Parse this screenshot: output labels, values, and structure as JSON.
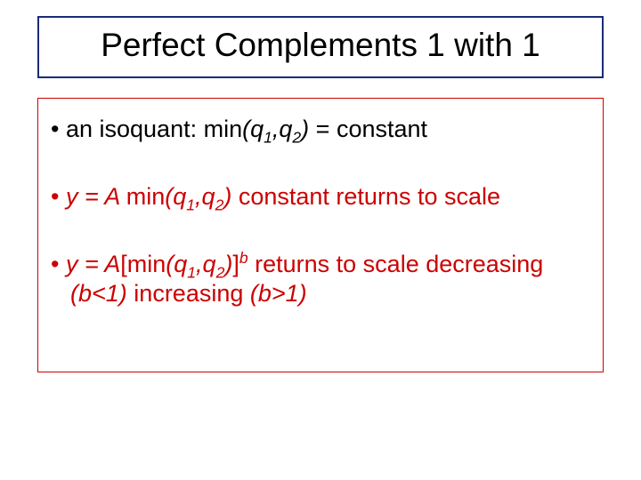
{
  "colors": {
    "title_border": "#1a2a7a",
    "title_text": "#000000",
    "body_border": "#cc0000",
    "bullet1_color": "#000000",
    "bullet2_color": "#cc0000",
    "bullet3_color": "#cc0000",
    "background": "#ffffff"
  },
  "typography": {
    "title_fontsize": 37,
    "body_fontsize": 27,
    "font_family": "Arial"
  },
  "title": "Perfect Complements 1 with 1",
  "bullets": [
    {
      "prefix": "an isoquant: min",
      "args": "(q₁,q₂)",
      "suffix": " = constant",
      "color_key": "bullet1_color"
    },
    {
      "pre_italic": "y = A ",
      "mid": "min",
      "args": "(q₁,q₂)",
      "suffix": " constant returns to scale",
      "color_key": "bullet2_color"
    },
    {
      "pre_italic": "y = A",
      "mid": "[min",
      "args": "(q₁,q₂)",
      "close": "]",
      "exp": "b",
      "suffix1": " returns to scale decreasing ",
      "cond1": "(b<1)",
      "suffix2": " increasing ",
      "cond2": "(b>1)",
      "color_key": "bullet3_color"
    }
  ],
  "bullet_marker": "•"
}
